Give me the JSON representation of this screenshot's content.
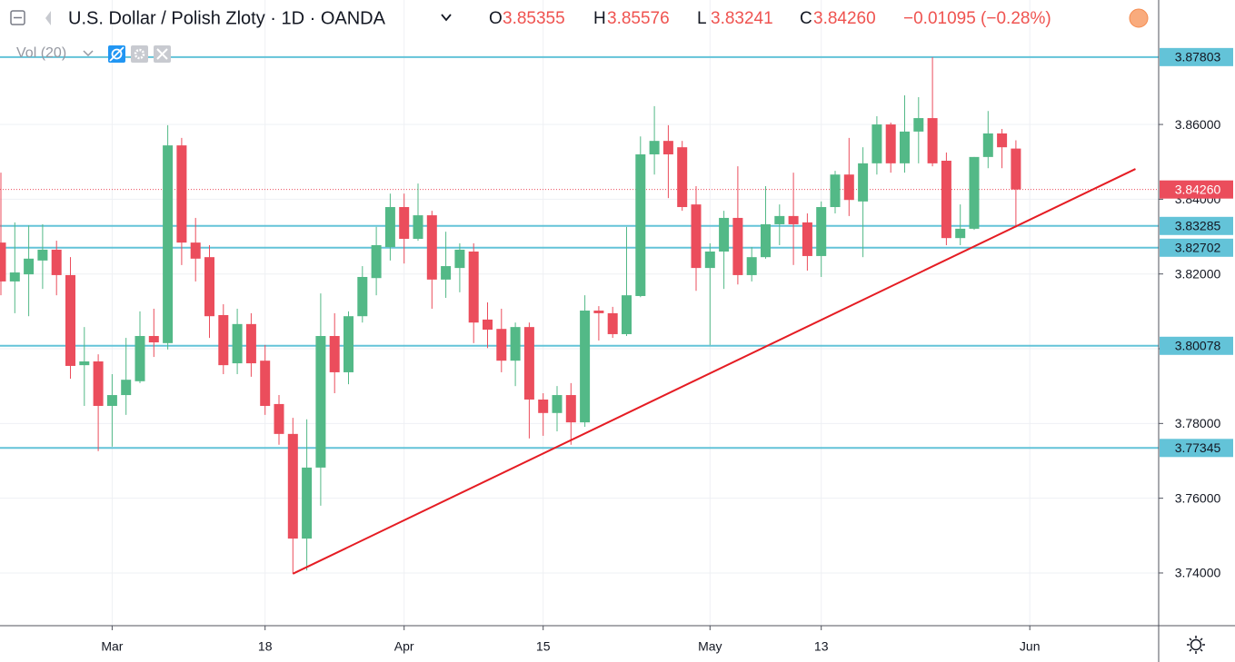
{
  "header": {
    "title": "U.S. Dollar / Polish Zloty · 1D · OANDA",
    "ohlc": [
      {
        "key": "O",
        "value": "3.85355"
      },
      {
        "key": "H",
        "value": "3.85576"
      },
      {
        "key": "L",
        "value": "3.83241"
      },
      {
        "key": "C",
        "value": "3.84260"
      }
    ],
    "change": "−0.01095 (−0.28%)",
    "indicator": "Vol (20)"
  },
  "chart_data": {
    "type": "candlestick",
    "categories": [
      null,
      null,
      null,
      null,
      null,
      null,
      null,
      null,
      "Mar",
      null,
      null,
      null,
      null,
      null,
      null,
      null,
      null,
      null,
      null,
      "18",
      null,
      null,
      null,
      null,
      null,
      null,
      null,
      null,
      null,
      "Apr",
      null,
      null,
      null,
      null,
      null,
      null,
      null,
      null,
      null,
      "15",
      null,
      null,
      null,
      null,
      null,
      null,
      null,
      null,
      null,
      null,
      null,
      "May",
      null,
      null,
      null,
      null,
      null,
      null,
      null,
      "13",
      null,
      null,
      null,
      null,
      null,
      null,
      null,
      null,
      null,
      null,
      null,
      null,
      null,
      null,
      "Jun",
      null,
      null,
      null,
      null,
      null,
      null,
      null,
      null,
      null
    ],
    "open": [
      3.8284,
      3.818,
      3.8199,
      3.8236,
      3.8265,
      3.8197,
      3.7956,
      3.7966,
      3.7847,
      3.7876,
      3.7913,
      3.8034,
      3.8015,
      3.8544,
      3.8284,
      3.8245,
      3.809,
      3.7961,
      3.8066,
      3.7968,
      3.7852,
      3.7772,
      3.7492,
      3.7682,
      3.8034,
      3.7937,
      3.8087,
      3.8189,
      3.8272,
      3.8379,
      3.8294,
      3.8357,
      3.8185,
      3.8216,
      3.826,
      3.8078,
      3.8053,
      3.7968,
      3.8058,
      3.7864,
      3.7828,
      3.7876,
      3.7803,
      3.8102,
      3.8095,
      3.8039,
      3.8141,
      3.852,
      3.8556,
      3.8539,
      3.8386,
      3.8216,
      3.826,
      3.835,
      3.8197,
      3.8245,
      3.8333,
      3.8355,
      3.8338,
      3.8248,
      3.8379,
      3.8466,
      3.8394,
      3.8496,
      3.86,
      3.8496,
      3.8581,
      3.8617,
      3.8503,
      3.8296,
      3.8321,
      3.8513,
      3.8576,
      3.85355,
      null,
      null,
      null,
      null,
      null,
      null,
      null,
      null,
      null,
      null
    ],
    "high": [
      3.8471,
      3.8338,
      3.833,
      3.8333,
      3.8289,
      3.8245,
      3.8058,
      3.7985,
      3.7932,
      3.8029,
      3.81,
      3.8107,
      3.8598,
      3.8564,
      3.835,
      3.8277,
      3.8119,
      3.8107,
      3.8095,
      3.801,
      3.7876,
      3.7815,
      3.7811,
      3.8148,
      3.8095,
      3.81,
      3.8221,
      3.8326,
      3.8415,
      3.8415,
      3.8442,
      3.8369,
      3.8313,
      3.8282,
      3.8282,
      3.8124,
      3.8107,
      3.807,
      3.807,
      3.7881,
      3.79,
      3.7908,
      3.8143,
      3.8114,
      3.8112,
      3.8326,
      3.8568,
      3.8649,
      3.8598,
      3.8556,
      3.8435,
      3.8282,
      3.8369,
      3.8488,
      3.8272,
      3.8435,
      3.8386,
      3.8471,
      3.8362,
      3.8394,
      3.8476,
      3.8564,
      3.8539,
      3.8622,
      3.8605,
      3.8678,
      3.8673,
      3.878,
      3.8525,
      3.8386,
      3.8513,
      3.8636,
      3.8588,
      3.85576,
      null,
      null,
      null,
      null,
      null,
      null,
      null,
      null,
      null,
      null
    ],
    "low": [
      3.8143,
      3.8095,
      3.8087,
      3.816,
      3.8143,
      3.792,
      3.7847,
      3.7726,
      3.7738,
      3.7823,
      3.7908,
      3.7978,
      3.7998,
      3.8224,
      3.818,
      3.8029,
      3.7932,
      3.7932,
      3.7925,
      3.7823,
      3.7743,
      3.7398,
      3.7407,
      3.758,
      3.7881,
      3.7905,
      3.807,
      3.8143,
      3.8236,
      3.8228,
      3.8289,
      3.8107,
      3.8136,
      3.8151,
      3.8015,
      3.8002,
      3.7937,
      3.79,
      3.776,
      3.7767,
      3.7779,
      3.7743,
      3.7791,
      3.8022,
      3.8029,
      3.8034,
      3.8138,
      3.8466,
      3.8403,
      3.8369,
      3.8155,
      3.801,
      3.816,
      3.8172,
      3.818,
      3.8241,
      3.8277,
      3.8224,
      3.8209,
      3.8192,
      3.8362,
      3.8355,
      3.8245,
      3.8466,
      3.8471,
      3.8471,
      3.8496,
      3.8488,
      3.8277,
      3.8277,
      3.8318,
      3.8483,
      3.8483,
      3.83241,
      null,
      null,
      null,
      null,
      null,
      null,
      null,
      null,
      null,
      null
    ],
    "close": [
      3.818,
      3.8204,
      3.8241,
      3.8265,
      3.8197,
      3.7954,
      3.7966,
      3.7847,
      3.7876,
      3.7917,
      3.8034,
      3.8017,
      3.8544,
      3.8284,
      3.8241,
      3.8087,
      3.7956,
      3.8066,
      3.7961,
      3.7847,
      3.7772,
      3.7492,
      3.7682,
      3.8034,
      3.7937,
      3.8087,
      3.8192,
      3.8277,
      3.8379,
      3.8294,
      3.8357,
      3.8185,
      3.8221,
      3.8265,
      3.807,
      3.8051,
      3.7968,
      3.8058,
      3.7864,
      3.7828,
      3.7876,
      3.7803,
      3.8102,
      3.8095,
      3.8039,
      3.8143,
      3.852,
      3.8556,
      3.852,
      3.8379,
      3.8216,
      3.826,
      3.835,
      3.8197,
      3.8245,
      3.8333,
      3.8355,
      3.8333,
      3.8248,
      3.8379,
      3.8466,
      3.8398,
      3.8496,
      3.86,
      3.8496,
      3.8581,
      3.8617,
      3.8496,
      3.8296,
      3.8321,
      3.8513,
      3.8576,
      3.8539,
      3.8426,
      null,
      null,
      null,
      null,
      null,
      null,
      null,
      null,
      null,
      null
    ],
    "up_color": "#53b987",
    "down_color": "#eb4d5c",
    "ylim": [
      3.7259,
      3.8933
    ],
    "yticks": [
      {
        "value": 3.74,
        "label": "3.74000"
      },
      {
        "value": 3.76,
        "label": "3.76000"
      },
      {
        "value": 3.78,
        "label": "3.78000"
      },
      {
        "value": 3.8,
        "label": "3.80000"
      },
      {
        "value": 3.82,
        "label": "3.82000"
      },
      {
        "value": 3.84,
        "label": "3.84000"
      },
      {
        "value": 3.86,
        "label": "3.86000"
      }
    ],
    "grid": true,
    "levels": [
      3.87803,
      3.83285,
      3.82702,
      3.80078,
      3.77345
    ],
    "level_color": "#63c3d8",
    "last_price": {
      "value": 3.8426,
      "label": "3.84260"
    },
    "trendline": {
      "x": [
        21,
        81.6
      ],
      "y": [
        3.7398,
        3.8481
      ],
      "color": "#e51c23"
    }
  }
}
